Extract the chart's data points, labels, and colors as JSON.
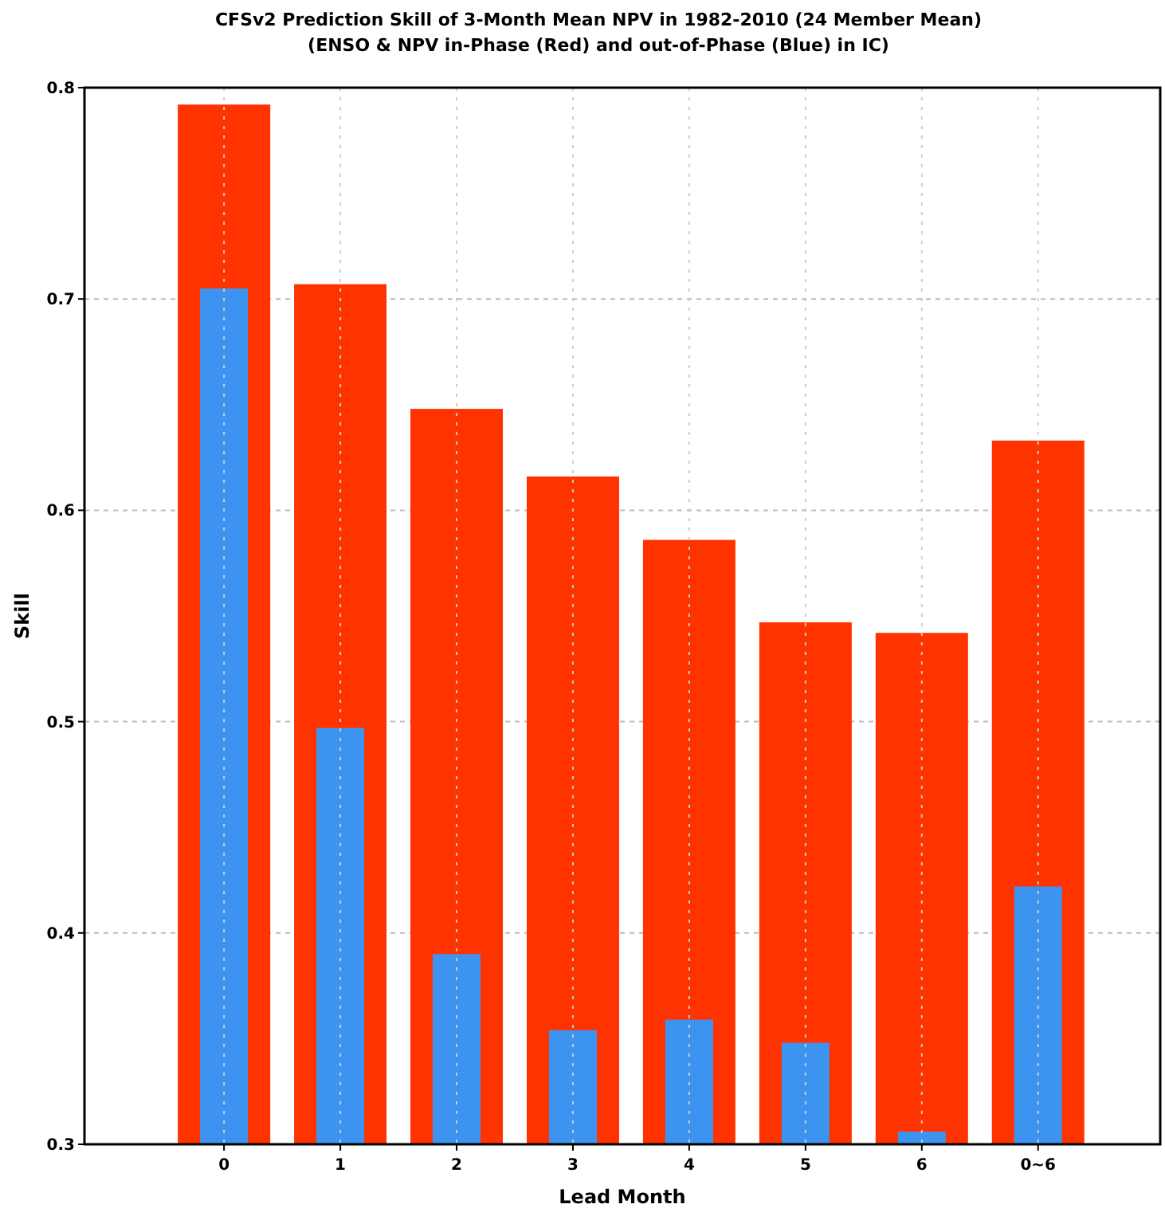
{
  "chart_data": {
    "type": "bar",
    "title": "CFSv2 Prediction Skill of 3-Month Mean NPV in 1982-2010 (24 Member Mean)",
    "subtitle": "(ENSO & NPV in-Phase (Red) and out-of-Phase (Blue) in IC)",
    "xlabel": "Lead Month",
    "ylabel": "Skill",
    "categories": [
      "0",
      "1",
      "2",
      "3",
      "4",
      "5",
      "6",
      "0~6"
    ],
    "series": [
      {
        "color": "#ff3300",
        "values": [
          0.792,
          0.707,
          0.648,
          0.616,
          0.586,
          0.547,
          0.542,
          0.633
        ]
      },
      {
        "color": "#3d94f0",
        "values": [
          0.705,
          0.497,
          0.39,
          0.354,
          0.359,
          0.348,
          0.306,
          0.422
        ]
      }
    ],
    "ylim": [
      0.3,
      0.8
    ],
    "yticks": [
      0.3,
      0.4,
      0.5,
      0.6,
      0.7,
      0.8
    ],
    "grid": true
  }
}
